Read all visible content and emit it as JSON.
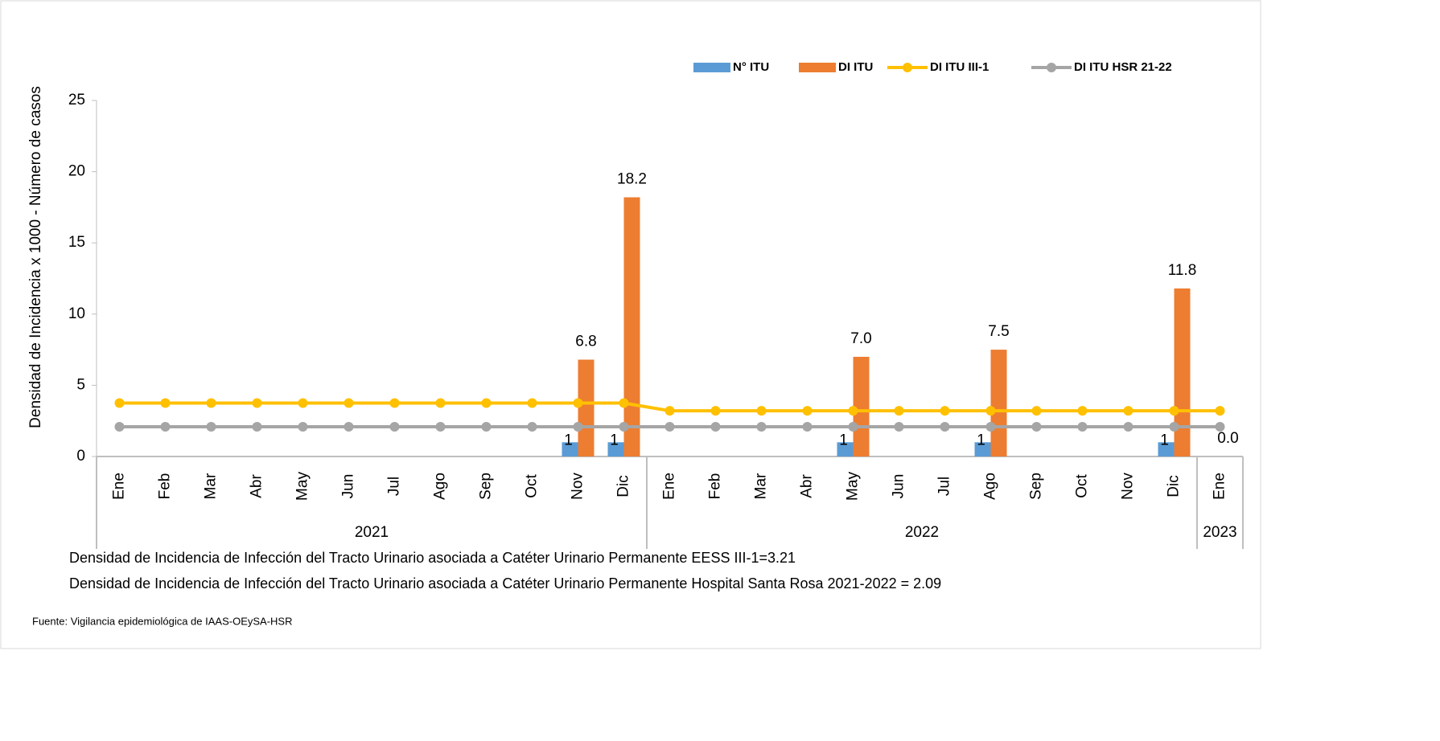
{
  "chart_data": {
    "type": "bar",
    "y_label": "Densidad de Incidencia x 1000 - Número de casos",
    "groups": [
      {
        "label": "2021",
        "categories": [
          "Ene",
          "Feb",
          "Mar",
          "Abr",
          "May",
          "Jun",
          "Jul",
          "Ago",
          "Sep",
          "Oct",
          "Nov",
          "Dic"
        ]
      },
      {
        "label": "2022",
        "categories": [
          "Ene",
          "Feb",
          "Mar",
          "Abr",
          "May",
          "Jun",
          "Jul",
          "Ago",
          "Sep",
          "Oct",
          "Nov",
          "Dic"
        ]
      },
      {
        "label": "2023",
        "categories": [
          "Ene"
        ]
      }
    ],
    "series": [
      {
        "name": "N° ITU",
        "type": "bar",
        "color": "#5b9bd5",
        "values": [
          null,
          null,
          null,
          null,
          null,
          null,
          null,
          null,
          null,
          null,
          1,
          1,
          null,
          null,
          null,
          null,
          1,
          null,
          null,
          1,
          null,
          null,
          null,
          1,
          null
        ]
      },
      {
        "name": "DI ITU",
        "type": "bar",
        "color": "#ed7d31",
        "values": [
          null,
          null,
          null,
          null,
          null,
          null,
          null,
          null,
          null,
          null,
          6.8,
          18.2,
          null,
          null,
          null,
          null,
          7,
          null,
          null,
          7.5,
          null,
          null,
          null,
          11.8,
          0
        ],
        "value_labels": [
          null,
          null,
          null,
          null,
          null,
          null,
          null,
          null,
          null,
          null,
          "6.8",
          "18.2",
          null,
          null,
          null,
          null,
          "7.0",
          null,
          null,
          "7.5",
          null,
          null,
          null,
          "11.8",
          "0.0"
        ]
      },
      {
        "name": "DI ITU III-1",
        "type": "line",
        "color": "#ffc000",
        "values": [
          3.75,
          3.75,
          3.75,
          3.75,
          3.75,
          3.75,
          3.75,
          3.75,
          3.75,
          3.75,
          3.75,
          3.75,
          3.21,
          3.21,
          3.21,
          3.21,
          3.21,
          3.21,
          3.21,
          3.21,
          3.21,
          3.21,
          3.21,
          3.21,
          3.21
        ]
      },
      {
        "name": "DI ITU HSR  21-22",
        "type": "line",
        "color": "#a5a5a5",
        "values": [
          2.09,
          2.09,
          2.09,
          2.09,
          2.09,
          2.09,
          2.09,
          2.09,
          2.09,
          2.09,
          2.09,
          2.09,
          2.09,
          2.09,
          2.09,
          2.09,
          2.09,
          2.09,
          2.09,
          2.09,
          2.09,
          2.09,
          2.09,
          2.09,
          2.09
        ]
      }
    ],
    "ylim": [
      0,
      25
    ],
    "yticks": [
      0,
      5,
      10,
      15,
      20,
      25
    ],
    "notes": [
      "Densidad de Incidencia de Infección del Tracto Urinario asociada a Catéter Urinario Permanente  EESS III-1=3.21",
      "Densidad de Incidencia de Infección del  Tracto Urinario asociada a Catéter Urinario Permanente Hospital Santa Rosa  2021-2022 = 2.09"
    ],
    "source": "Fuente: Vigilancia epidemiológica de IAAS-OEySA-HSR"
  }
}
